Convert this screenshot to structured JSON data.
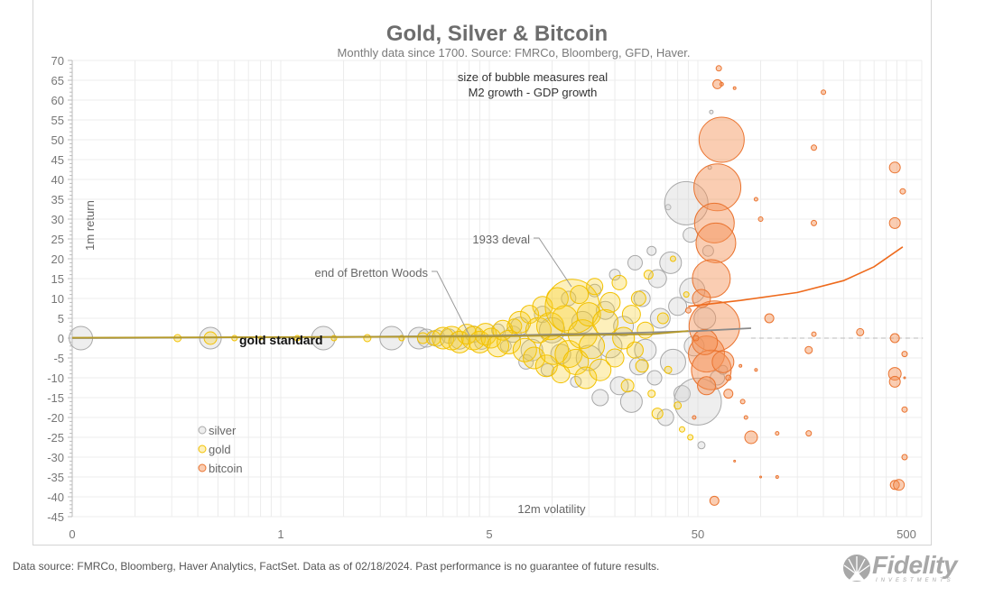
{
  "chart_data": {
    "type": "bubble",
    "title": "Gold, Silver & Bitcoin",
    "subtitle": "Monthly data since 1700.  Source: FMRCo, Bloomberg, GFD, Haver.",
    "note_lines": [
      "size of bubble measures real",
      "M2 growth - GDP growth"
    ],
    "xlabel": "12m volatility",
    "ylabel": "1m return",
    "x_scale": "log",
    "x_ticks": [
      {
        "value": 0.05,
        "label": "0"
      },
      {
        "value": 0.5,
        "label": "1"
      },
      {
        "value": 5,
        "label": "5"
      },
      {
        "value": 50,
        "label": "50"
      },
      {
        "value": 500,
        "label": "500"
      }
    ],
    "xlim": [
      0.05,
      600
    ],
    "ylim": [
      -45,
      70
    ],
    "y_ticks": [
      70,
      65,
      60,
      55,
      50,
      45,
      40,
      35,
      30,
      25,
      20,
      15,
      10,
      5,
      0,
      -5,
      -10,
      -15,
      -20,
      -25,
      -30,
      -35,
      -40,
      -45
    ],
    "grid": true,
    "legend_placement": "lower-left",
    "legend": [
      "silver",
      "gold",
      "bitcoin"
    ],
    "colors": {
      "silver": "#c9c9c9",
      "gold": "#f7c600",
      "bitcoin": "#f28b4c",
      "bitcoin_trend": "#ee6a1c",
      "trend": "#8a8a8a"
    },
    "annotations": [
      {
        "text": "1933 deval",
        "x": 13,
        "y": 25
      },
      {
        "text": "end of Bretton Woods",
        "x": 4,
        "y": 17
      },
      {
        "text": "gold standard",
        "x": 1.2,
        "y": 0
      }
    ],
    "trendlines": [
      {
        "series": "silver/gold",
        "points": [
          [
            0.05,
            0
          ],
          [
            1,
            0.3
          ],
          [
            5,
            0.6
          ],
          [
            20,
            1.2
          ],
          [
            50,
            1.8
          ],
          [
            90,
            2.5
          ]
        ]
      },
      {
        "series": "gold",
        "points": [
          [
            0.05,
            0.1
          ],
          [
            5,
            0.4
          ],
          [
            30,
            1.0
          ],
          [
            45,
            1.8
          ]
        ]
      },
      {
        "series": "bitcoin",
        "points": [
          [
            45,
            8
          ],
          [
            80,
            9.5
          ],
          [
            150,
            11.5
          ],
          [
            250,
            14.5
          ],
          [
            350,
            18
          ],
          [
            480,
            23
          ]
        ]
      }
    ],
    "zero_line": {
      "from": 90,
      "to": 600
    },
    "series": [
      {
        "name": "silver",
        "points": [
          [
            0.055,
            0,
            13
          ],
          [
            0.23,
            0,
            12
          ],
          [
            0.8,
            0,
            13
          ],
          [
            1.7,
            0,
            13
          ],
          [
            2.3,
            0,
            12
          ],
          [
            2.5,
            0,
            10
          ],
          [
            2.8,
            0,
            9
          ],
          [
            3.2,
            0.5,
            8
          ],
          [
            3.6,
            -0.5,
            10
          ],
          [
            4.2,
            1,
            9
          ],
          [
            4.6,
            -1,
            8
          ],
          [
            5.5,
            2,
            7
          ],
          [
            6,
            -2,
            6
          ],
          [
            6.5,
            1,
            9
          ],
          [
            7,
            3,
            10
          ],
          [
            7.5,
            -6,
            8
          ],
          [
            8,
            -3,
            12
          ],
          [
            9,
            6,
            9
          ],
          [
            9.5,
            -8,
            7
          ],
          [
            10,
            2,
            14
          ],
          [
            11,
            -4,
            11
          ],
          [
            12,
            10,
            8
          ],
          [
            13,
            -11,
            6
          ],
          [
            14,
            4,
            12
          ],
          [
            15,
            -5,
            14
          ],
          [
            16,
            12,
            7
          ],
          [
            17,
            -15,
            9
          ],
          [
            18,
            7,
            10
          ],
          [
            19,
            -2,
            13
          ],
          [
            20,
            16,
            6
          ],
          [
            21,
            -12,
            10
          ],
          [
            22,
            3,
            11
          ],
          [
            24,
            -16,
            12
          ],
          [
            25,
            19,
            8
          ],
          [
            26,
            -7,
            10
          ],
          [
            27,
            10,
            9
          ],
          [
            28,
            -3,
            12
          ],
          [
            30,
            22,
            5
          ],
          [
            31,
            -10,
            8
          ],
          [
            32,
            15,
            10
          ],
          [
            33,
            5,
            11
          ],
          [
            35,
            -20,
            9
          ],
          [
            36,
            33,
            3
          ],
          [
            37,
            19,
            12
          ],
          [
            38,
            -6,
            14
          ],
          [
            40,
            8,
            10
          ],
          [
            42,
            -14,
            9
          ],
          [
            44,
            34,
            24
          ],
          [
            46,
            26,
            8
          ],
          [
            47,
            12,
            14
          ],
          [
            48,
            -2,
            11
          ],
          [
            50,
            -16,
            26
          ],
          [
            52,
            -27,
            4
          ],
          [
            54,
            5,
            12
          ],
          [
            56,
            22,
            6
          ],
          [
            57,
            43,
            2
          ],
          [
            58,
            57,
            2
          ],
          [
            62,
            -10,
            8
          ],
          [
            66,
            -8,
            5
          ]
        ]
      },
      {
        "name": "gold",
        "points": [
          [
            0.16,
            0,
            4
          ],
          [
            0.23,
            0,
            7
          ],
          [
            0.3,
            0,
            3
          ],
          [
            0.4,
            0,
            2
          ],
          [
            0.6,
            0,
            3
          ],
          [
            0.9,
            0,
            3
          ],
          [
            1.3,
            0,
            4
          ],
          [
            1.9,
            0,
            3
          ],
          [
            2.4,
            0,
            6
          ],
          [
            2.7,
            0,
            8
          ],
          [
            3.0,
            0,
            12
          ],
          [
            3.3,
            0,
            13
          ],
          [
            3.6,
            -1,
            12
          ],
          [
            3.9,
            1,
            11
          ],
          [
            4.2,
            0,
            13
          ],
          [
            4.5,
            -1,
            12
          ],
          [
            4.8,
            1,
            12
          ],
          [
            5.1,
            0,
            11
          ],
          [
            5.5,
            -2,
            12
          ],
          [
            5.8,
            2,
            11
          ],
          [
            6.2,
            -1,
            13
          ],
          [
            6.6,
            3,
            8
          ],
          [
            7,
            4,
            12
          ],
          [
            7.4,
            -3,
            13
          ],
          [
            7.8,
            6,
            10
          ],
          [
            8.2,
            -5,
            12
          ],
          [
            8.6,
            2,
            14
          ],
          [
            9,
            8,
            11
          ],
          [
            9.4,
            -7,
            12
          ],
          [
            9.8,
            3,
            15
          ],
          [
            10.2,
            -3,
            16
          ],
          [
            10.6,
            10,
            12
          ],
          [
            11,
            -9,
            10
          ],
          [
            11.5,
            5,
            14
          ],
          [
            12,
            -4,
            15
          ],
          [
            12.5,
            8,
            30
          ],
          [
            13,
            -6,
            14
          ],
          [
            13.5,
            11,
            10
          ],
          [
            14,
            1,
            16
          ],
          [
            14.5,
            -10,
            12
          ],
          [
            15,
            6,
            13
          ],
          [
            15.5,
            -2,
            14
          ],
          [
            16,
            13,
            9
          ],
          [
            17,
            -8,
            12
          ],
          [
            18,
            4,
            14
          ],
          [
            19,
            9,
            11
          ],
          [
            20,
            -5,
            10
          ],
          [
            21,
            14,
            8
          ],
          [
            22,
            0,
            12
          ],
          [
            23,
            -12,
            7
          ],
          [
            24,
            6,
            10
          ],
          [
            25,
            -3,
            9
          ],
          [
            26,
            10,
            8
          ],
          [
            27,
            -7,
            7
          ],
          [
            28,
            2,
            9
          ],
          [
            29,
            16,
            5
          ],
          [
            30,
            -14,
            4
          ],
          [
            32,
            -19,
            6
          ],
          [
            34,
            5,
            6
          ],
          [
            36,
            -8,
            4
          ],
          [
            38,
            20,
            3
          ],
          [
            40,
            -17,
            4
          ],
          [
            42,
            -23,
            3
          ],
          [
            44,
            11,
            3
          ],
          [
            46,
            -25,
            3
          ]
        ]
      },
      {
        "name": "bitcoin",
        "points": [
          [
            65,
            50,
            25
          ],
          [
            62,
            38,
            26
          ],
          [
            60,
            29,
            22
          ],
          [
            61,
            24,
            22
          ],
          [
            58,
            15,
            21
          ],
          [
            60,
            3,
            28
          ],
          [
            55,
            -4,
            20
          ],
          [
            58,
            -8,
            22
          ],
          [
            54,
            -1,
            14
          ],
          [
            52,
            10,
            10
          ],
          [
            55,
            -12,
            10
          ],
          [
            66,
            -6,
            12
          ],
          [
            63,
            68,
            3
          ],
          [
            62,
            64,
            5
          ],
          [
            65,
            64,
            2
          ],
          [
            75,
            63,
            1.5
          ],
          [
            200,
            62,
            2.5
          ],
          [
            180,
            48,
            3
          ],
          [
            440,
            43,
            6
          ],
          [
            480,
            37,
            3
          ],
          [
            180,
            29,
            3
          ],
          [
            440,
            29,
            6
          ],
          [
            95,
            35,
            2
          ],
          [
            100,
            30,
            2.5
          ],
          [
            110,
            5,
            5
          ],
          [
            180,
            1,
            2.5
          ],
          [
            300,
            1.5,
            4
          ],
          [
            440,
            0,
            5
          ],
          [
            490,
            -4,
            3
          ],
          [
            170,
            -3,
            4
          ],
          [
            440,
            -9,
            7
          ],
          [
            440,
            -11,
            6
          ],
          [
            490,
            -18,
            3
          ],
          [
            85,
            -20,
            2
          ],
          [
            90,
            -25,
            7
          ],
          [
            120,
            -24,
            2
          ],
          [
            170,
            -24,
            3
          ],
          [
            490,
            -30,
            3
          ],
          [
            440,
            -37,
            5
          ],
          [
            460,
            -37,
            6
          ],
          [
            60,
            -41,
            5
          ],
          [
            100,
            -35,
            1
          ],
          [
            120,
            -35,
            1.5
          ],
          [
            75,
            -31,
            1
          ],
          [
            490,
            -10,
            1
          ],
          [
            80,
            -7,
            1.5
          ],
          [
            95,
            -8,
            1.5
          ],
          [
            48,
            -20,
            2
          ],
          [
            70,
            -14,
            5
          ],
          [
            82,
            -16,
            2.5
          ],
          [
            45,
            7,
            3
          ],
          [
            49,
            0,
            3
          ],
          [
            70,
            -10,
            3
          ]
        ]
      }
    ]
  },
  "footnote": "Data source: FMRCo, Bloomberg, Haver Analytics, FactSet. Data as of 02/18/2024. Past performance is no guarantee of future results.",
  "logo": {
    "text": "Fidelity",
    "subtext": "INVESTMENTS"
  }
}
